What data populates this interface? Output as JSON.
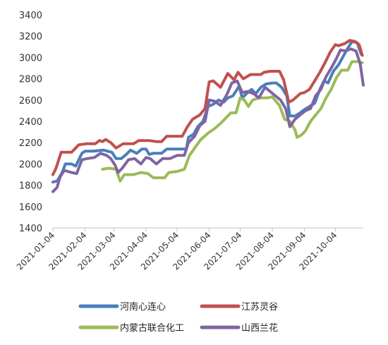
{
  "chart_data": {
    "type": "line",
    "title": "",
    "xlabel": "",
    "ylabel": "",
    "ylim": [
      1400,
      3400
    ],
    "y_ticks": [
      "1400",
      "1600",
      "1800",
      "2000",
      "2200",
      "2400",
      "2600",
      "2800",
      "3000",
      "3200",
      "3400"
    ],
    "x_ticks": [
      "2021-01-04",
      "2021-02-04",
      "2021-03-04",
      "2021-04-04",
      "2021-05-04",
      "2021-06-04",
      "2021-07-04",
      "2021-08-04",
      "2021-09-04",
      "2021-10-04"
    ],
    "xlim": [
      "2021-01-04",
      "2021-10-31"
    ],
    "grid": false,
    "legend_position": "bottom",
    "series": [
      {
        "name": "河南心连心",
        "color": "#4a7ebb",
        "points": [
          [
            "2021-01-04",
            1830
          ],
          [
            "2021-01-08",
            1840
          ],
          [
            "2021-01-13",
            1920
          ],
          [
            "2021-01-16",
            2000
          ],
          [
            "2021-01-22",
            2000
          ],
          [
            "2021-01-26",
            1980
          ],
          [
            "2021-02-01",
            2100
          ],
          [
            "2021-02-04",
            2120
          ],
          [
            "2021-02-12",
            2120
          ],
          [
            "2021-02-22",
            2130
          ],
          [
            "2021-03-02",
            2110
          ],
          [
            "2021-03-06",
            2050
          ],
          [
            "2021-03-11",
            2050
          ],
          [
            "2021-03-16",
            2090
          ],
          [
            "2021-03-20",
            2130
          ],
          [
            "2021-03-26",
            2100
          ],
          [
            "2021-03-31",
            2140
          ],
          [
            "2021-04-04",
            2140
          ],
          [
            "2021-04-07",
            2090
          ],
          [
            "2021-04-11",
            2100
          ],
          [
            "2021-04-19",
            2100
          ],
          [
            "2021-04-24",
            2140
          ],
          [
            "2021-05-04",
            2140
          ],
          [
            "2021-05-13",
            2140
          ],
          [
            "2021-05-15",
            2250
          ],
          [
            "2021-05-20",
            2280
          ],
          [
            "2021-05-24",
            2350
          ],
          [
            "2021-05-29",
            2400
          ],
          [
            "2021-06-03",
            2540
          ],
          [
            "2021-06-08",
            2560
          ],
          [
            "2021-06-13",
            2600
          ],
          [
            "2021-06-18",
            2580
          ],
          [
            "2021-06-22",
            2620
          ],
          [
            "2021-06-27",
            2640
          ],
          [
            "2021-07-03",
            2730
          ],
          [
            "2021-07-06",
            2620
          ],
          [
            "2021-07-10",
            2660
          ],
          [
            "2021-07-15",
            2700
          ],
          [
            "2021-07-19",
            2660
          ],
          [
            "2021-07-24",
            2720
          ],
          [
            "2021-07-29",
            2750
          ],
          [
            "2021-08-04",
            2760
          ],
          [
            "2021-08-08",
            2760
          ],
          [
            "2021-08-13",
            2720
          ],
          [
            "2021-08-18",
            2640
          ],
          [
            "2021-08-21",
            2450
          ],
          [
            "2021-08-26",
            2450
          ],
          [
            "2021-08-31",
            2480
          ],
          [
            "2021-09-04",
            2510
          ],
          [
            "2021-09-09",
            2540
          ],
          [
            "2021-09-14",
            2570
          ],
          [
            "2021-09-19",
            2700
          ],
          [
            "2021-09-23",
            2780
          ],
          [
            "2021-09-27",
            2760
          ],
          [
            "2021-10-02",
            2870
          ],
          [
            "2021-10-07",
            2930
          ],
          [
            "2021-10-11",
            3000
          ],
          [
            "2021-10-15",
            3070
          ],
          [
            "2021-10-20",
            3150
          ],
          [
            "2021-10-25",
            3140
          ],
          [
            "2021-10-29",
            3030
          ]
        ]
      },
      {
        "name": "江苏灵谷",
        "color": "#c0504d",
        "points": [
          [
            "2021-01-04",
            1900
          ],
          [
            "2021-01-07",
            1960
          ],
          [
            "2021-01-12",
            2110
          ],
          [
            "2021-01-22",
            2110
          ],
          [
            "2021-01-29",
            2180
          ],
          [
            "2021-02-06",
            2190
          ],
          [
            "2021-02-14",
            2190
          ],
          [
            "2021-02-18",
            2220
          ],
          [
            "2021-02-21",
            2210
          ],
          [
            "2021-02-24",
            2230
          ],
          [
            "2021-03-01",
            2200
          ],
          [
            "2021-03-06",
            2150
          ],
          [
            "2021-03-13",
            2190
          ],
          [
            "2021-03-23",
            2190
          ],
          [
            "2021-03-28",
            2220
          ],
          [
            "2021-04-07",
            2220
          ],
          [
            "2021-04-14",
            2210
          ],
          [
            "2021-04-19",
            2210
          ],
          [
            "2021-04-24",
            2260
          ],
          [
            "2021-05-09",
            2260
          ],
          [
            "2021-05-14",
            2350
          ],
          [
            "2021-05-19",
            2420
          ],
          [
            "2021-05-26",
            2460
          ],
          [
            "2021-05-31",
            2520
          ],
          [
            "2021-06-04",
            2770
          ],
          [
            "2021-06-08",
            2780
          ],
          [
            "2021-06-15",
            2720
          ],
          [
            "2021-06-22",
            2850
          ],
          [
            "2021-06-28",
            2790
          ],
          [
            "2021-07-02",
            2860
          ],
          [
            "2021-07-07",
            2800
          ],
          [
            "2021-07-14",
            2840
          ],
          [
            "2021-07-24",
            2840
          ],
          [
            "2021-07-27",
            2860
          ],
          [
            "2021-08-02",
            2870
          ],
          [
            "2021-08-11",
            2870
          ],
          [
            "2021-08-15",
            2790
          ],
          [
            "2021-08-20",
            2580
          ],
          [
            "2021-08-24",
            2600
          ],
          [
            "2021-08-31",
            2660
          ],
          [
            "2021-09-04",
            2670
          ],
          [
            "2021-09-09",
            2700
          ],
          [
            "2021-09-14",
            2780
          ],
          [
            "2021-09-19",
            2860
          ],
          [
            "2021-09-24",
            2950
          ],
          [
            "2021-09-29",
            3050
          ],
          [
            "2021-10-04",
            3120
          ],
          [
            "2021-10-07",
            3110
          ],
          [
            "2021-10-13",
            3130
          ],
          [
            "2021-10-18",
            3160
          ],
          [
            "2021-10-23",
            3150
          ],
          [
            "2021-10-27",
            3120
          ],
          [
            "2021-10-30",
            3020
          ]
        ]
      },
      {
        "name": "内蒙古联合化工",
        "color": "#9bbb59",
        "points": [
          [
            "2021-02-21",
            1950
          ],
          [
            "2021-02-27",
            1960
          ],
          [
            "2021-03-06",
            1950
          ],
          [
            "2021-03-10",
            1840
          ],
          [
            "2021-03-14",
            1900
          ],
          [
            "2021-03-23",
            1900
          ],
          [
            "2021-03-30",
            1920
          ],
          [
            "2021-04-06",
            1910
          ],
          [
            "2021-04-11",
            1870
          ],
          [
            "2021-04-22",
            1870
          ],
          [
            "2021-04-26",
            1920
          ],
          [
            "2021-05-04",
            1930
          ],
          [
            "2021-05-11",
            1950
          ],
          [
            "2021-05-16",
            2080
          ],
          [
            "2021-05-21",
            2150
          ],
          [
            "2021-05-27",
            2230
          ],
          [
            "2021-06-03",
            2290
          ],
          [
            "2021-06-09",
            2330
          ],
          [
            "2021-06-15",
            2380
          ],
          [
            "2021-06-20",
            2430
          ],
          [
            "2021-06-25",
            2480
          ],
          [
            "2021-06-30",
            2480
          ],
          [
            "2021-07-04",
            2620
          ],
          [
            "2021-07-08",
            2600
          ],
          [
            "2021-07-12",
            2540
          ],
          [
            "2021-07-16",
            2600
          ],
          [
            "2021-07-22",
            2620
          ],
          [
            "2021-07-30",
            2620
          ],
          [
            "2021-08-04",
            2630
          ],
          [
            "2021-08-11",
            2550
          ],
          [
            "2021-08-16",
            2420
          ],
          [
            "2021-08-21",
            2400
          ],
          [
            "2021-08-26",
            2320
          ],
          [
            "2021-08-28",
            2250
          ],
          [
            "2021-09-01",
            2270
          ],
          [
            "2021-09-05",
            2310
          ],
          [
            "2021-09-10",
            2400
          ],
          [
            "2021-09-15",
            2460
          ],
          [
            "2021-09-20",
            2520
          ],
          [
            "2021-09-25",
            2620
          ],
          [
            "2021-09-30",
            2700
          ],
          [
            "2021-10-05",
            2810
          ],
          [
            "2021-10-10",
            2880
          ],
          [
            "2021-10-16",
            2880
          ],
          [
            "2021-10-20",
            2960
          ],
          [
            "2021-10-26",
            2960
          ],
          [
            "2021-10-30",
            2950
          ]
        ]
      },
      {
        "name": "山西兰花",
        "color": "#8064a2",
        "points": [
          [
            "2021-01-04",
            1740
          ],
          [
            "2021-01-08",
            1780
          ],
          [
            "2021-01-11",
            1880
          ],
          [
            "2021-01-15",
            1940
          ],
          [
            "2021-01-22",
            1920
          ],
          [
            "2021-01-27",
            1910
          ],
          [
            "2021-02-01",
            2040
          ],
          [
            "2021-02-06",
            2050
          ],
          [
            "2021-02-13",
            2060
          ],
          [
            "2021-02-19",
            2100
          ],
          [
            "2021-02-25",
            2080
          ],
          [
            "2021-03-01",
            2050
          ],
          [
            "2021-03-05",
            1990
          ],
          [
            "2021-03-08",
            1920
          ],
          [
            "2021-03-12",
            1960
          ],
          [
            "2021-03-18",
            2040
          ],
          [
            "2021-03-24",
            2050
          ],
          [
            "2021-03-30",
            2000
          ],
          [
            "2021-04-04",
            2060
          ],
          [
            "2021-04-08",
            2050
          ],
          [
            "2021-04-14",
            2000
          ],
          [
            "2021-04-20",
            2050
          ],
          [
            "2021-04-27",
            2050
          ],
          [
            "2021-05-04",
            2080
          ],
          [
            "2021-05-11",
            2080
          ],
          [
            "2021-05-15",
            2200
          ],
          [
            "2021-05-21",
            2260
          ],
          [
            "2021-05-26",
            2360
          ],
          [
            "2021-05-31",
            2400
          ],
          [
            "2021-06-04",
            2600
          ],
          [
            "2021-06-09",
            2590
          ],
          [
            "2021-06-15",
            2550
          ],
          [
            "2021-06-21",
            2650
          ],
          [
            "2021-06-26",
            2760
          ],
          [
            "2021-07-01",
            2780
          ],
          [
            "2021-07-06",
            2670
          ],
          [
            "2021-07-11",
            2680
          ],
          [
            "2021-07-17",
            2660
          ],
          [
            "2021-07-22",
            2620
          ],
          [
            "2021-07-28",
            2720
          ],
          [
            "2021-08-02",
            2680
          ],
          [
            "2021-08-07",
            2640
          ],
          [
            "2021-08-12",
            2600
          ],
          [
            "2021-08-17",
            2520
          ],
          [
            "2021-08-21",
            2350
          ],
          [
            "2021-08-26",
            2420
          ],
          [
            "2021-08-31",
            2460
          ],
          [
            "2021-09-05",
            2500
          ],
          [
            "2021-09-10",
            2520
          ],
          [
            "2021-09-15",
            2640
          ],
          [
            "2021-09-20",
            2700
          ],
          [
            "2021-09-25",
            2820
          ],
          [
            "2021-09-30",
            2900
          ],
          [
            "2021-10-05",
            2990
          ],
          [
            "2021-10-09",
            3070
          ],
          [
            "2021-10-14",
            3060
          ],
          [
            "2021-10-19",
            3080
          ],
          [
            "2021-10-24",
            3060
          ],
          [
            "2021-10-28",
            2940
          ],
          [
            "2021-10-31",
            2740
          ]
        ]
      }
    ]
  }
}
